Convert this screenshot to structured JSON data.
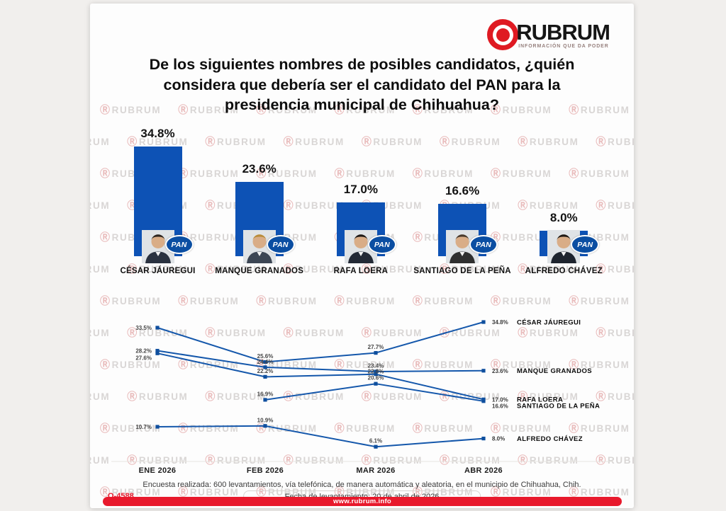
{
  "logo": {
    "brand": "RUBRUM",
    "tagline": "INFORMACIÓN QUE DA PODER"
  },
  "title": "De los siguientes nombres de posibles candidatos, ¿quién considera que debería ser el candidato del PAN para la presidencia municipal de Chihuahua?",
  "watermark": {
    "icon": "Ⓡ",
    "token": "RUBRUM"
  },
  "party_badge": "PAN",
  "colors": {
    "bar_blue": "#0d52b5",
    "line_blue": "#1457ab",
    "marker_blue": "#0f4f9e",
    "accent_red": "#e8192c",
    "logo_red": "#df1a22"
  },
  "chart_data": [
    {
      "type": "bar",
      "title": "",
      "categories": [
        "CÉSAR JÁUREGUI",
        "MANQUE GRANADOS",
        "RAFA LOERA",
        "SANTIAGO DE LA PEÑA",
        "ALFREDO CHÁVEZ"
      ],
      "values": [
        34.8,
        23.6,
        17.0,
        16.6,
        8.0
      ],
      "value_suffix": "%",
      "ylim": [
        0,
        40
      ],
      "grid": false
    },
    {
      "type": "line",
      "title": "",
      "x": [
        "ENE 2026",
        "FEB 2026",
        "MAR 2026",
        "ABR 2026"
      ],
      "series": [
        {
          "name": "CÉSAR JÁUREGUI",
          "values": [
            33.5,
            25.6,
            27.7,
            34.8
          ]
        },
        {
          "name": "MANQUE GRANADOS",
          "values": [
            28.2,
            24.4,
            23.4,
            23.6
          ]
        },
        {
          "name": "RAFA LOERA",
          "values": [
            27.6,
            22.2,
            22.8,
            17.0
          ]
        },
        {
          "name": "SANTIAGO DE LA PEÑA",
          "values": [
            null,
            16.9,
            20.6,
            16.6
          ]
        },
        {
          "name": "ALFREDO CHÁVEZ",
          "values": [
            10.7,
            10.9,
            6.1,
            8.0
          ]
        }
      ],
      "value_suffix": "%",
      "ylim": [
        0,
        40
      ],
      "grid": false,
      "legend_position": "right-of-last-point"
    }
  ],
  "footer": {
    "methodology": "Encuesta realizada: 600 levantamientos, vía telefónica, de manera automática y aleatoria, en el municipio de Chihuahua, Chih.",
    "code": "O-4588",
    "date_line": "Fecha de levantamiento: 20 de abril de 2026",
    "website": "www.rubrum.info"
  }
}
